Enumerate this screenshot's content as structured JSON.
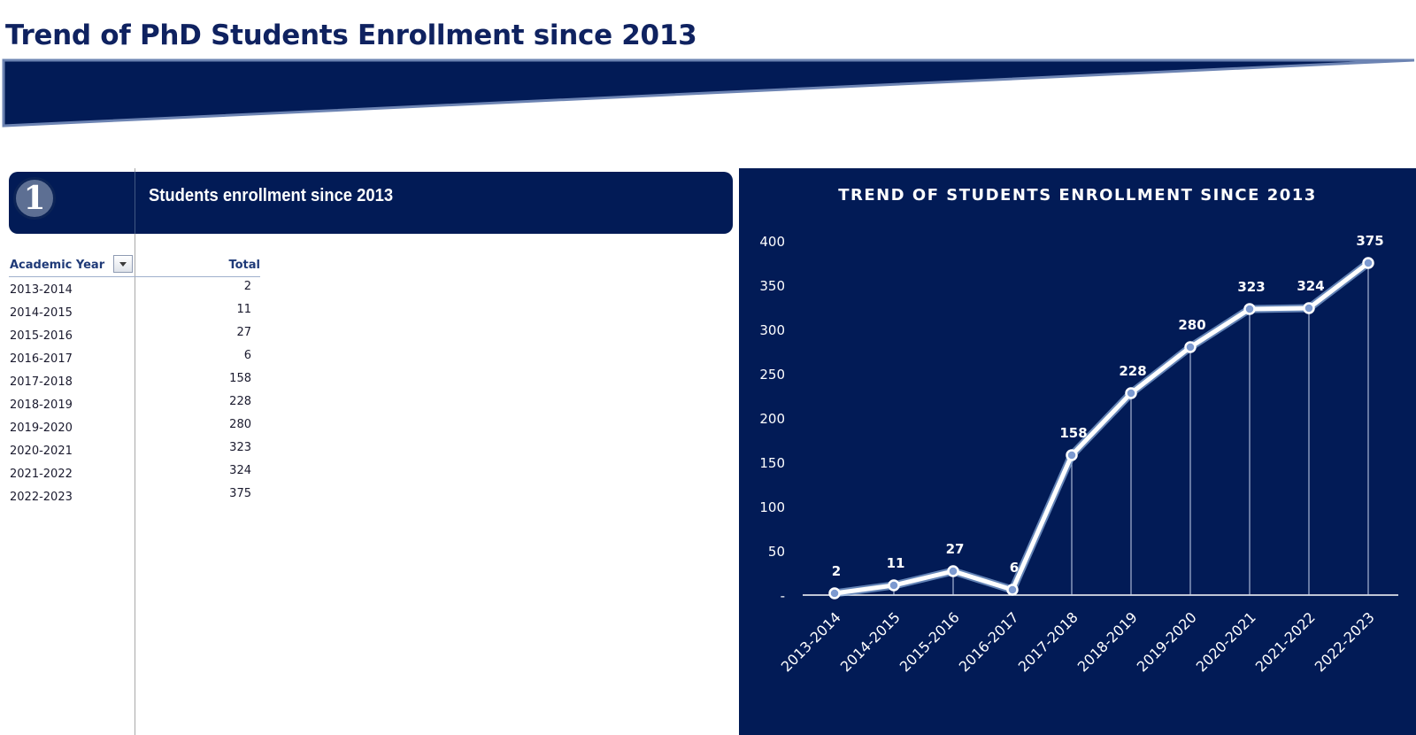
{
  "page": {
    "title": "Trend of PhD Students Enrollment since 2013"
  },
  "section": {
    "number": "1",
    "title": "Students enrollment  since 2013"
  },
  "pivot": {
    "year_header": "Academic Year",
    "total_header": "Total",
    "rows": [
      {
        "year": "2013-2014",
        "total": "2"
      },
      {
        "year": "2014-2015",
        "total": "11"
      },
      {
        "year": "2015-2016",
        "total": "27"
      },
      {
        "year": "2016-2017",
        "total": "6"
      },
      {
        "year": "2017-2018",
        "total": "158"
      },
      {
        "year": "2018-2019",
        "total": "228"
      },
      {
        "year": "2019-2020",
        "total": "280"
      },
      {
        "year": "2020-2021",
        "total": "323"
      },
      {
        "year": "2021-2022",
        "total": "324"
      },
      {
        "year": "2022-2023",
        "total": "375"
      }
    ]
  },
  "colors": {
    "navy": "#021b56",
    "banner_edge": "#6d84b3",
    "line": "#ffffff",
    "line_glow": "#8fb0e0"
  },
  "chart_data": {
    "type": "line",
    "title": "TREND OF STUDENTS ENROLLMENT SINCE 2013",
    "categories": [
      "2013-2014",
      "2014-2015",
      "2015-2016",
      "2016-2017",
      "2017-2018",
      "2018-2019",
      "2019-2020",
      "2020-2021",
      "2021-2022",
      "2022-2023"
    ],
    "series": [
      {
        "values": [
          2,
          11,
          27,
          6,
          158,
          228,
          280,
          323,
          324,
          375
        ]
      }
    ],
    "y_ticks": [
      0,
      50,
      100,
      150,
      200,
      250,
      300,
      350,
      400
    ],
    "y_tick_labels": [
      "-",
      "50",
      "100",
      "150",
      "200",
      "250",
      "300",
      "350",
      "400"
    ],
    "ylim": [
      0,
      400
    ],
    "data_labels": true,
    "drop_lines": true,
    "grid": false,
    "legend": "none"
  }
}
